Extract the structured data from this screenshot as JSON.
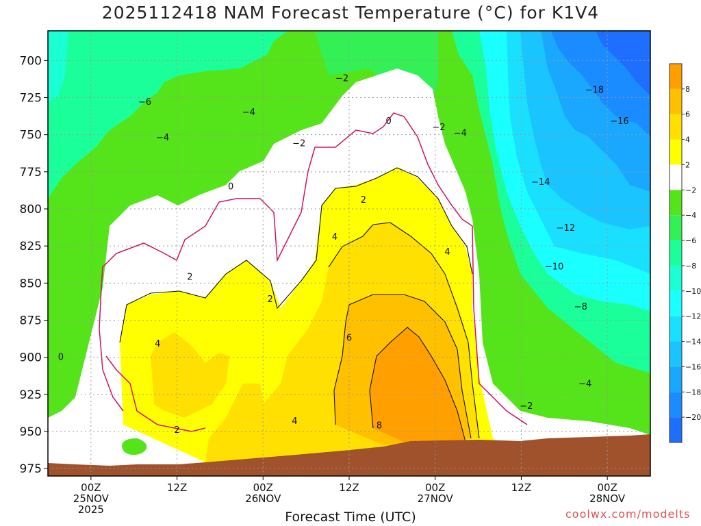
{
  "chart_data": {
    "type": "contour",
    "title": "2025112418 NAM Forecast Temperature (°C) for K1V4",
    "xlabel": "Forecast Time (UTC)",
    "ylabel": "",
    "y_scale": "pressure (hPa), decreasing upward",
    "y_range": [
      980,
      680
    ],
    "y_ticks": [
      700,
      725,
      750,
      775,
      800,
      825,
      850,
      875,
      900,
      925,
      950,
      975
    ],
    "x_range_hours": [
      0,
      84
    ],
    "x_ticks": [
      {
        "hour": 6,
        "lines": [
          "00Z",
          "25NOV",
          "2025"
        ]
      },
      {
        "hour": 18,
        "lines": [
          "12Z"
        ]
      },
      {
        "hour": 30,
        "lines": [
          "00Z",
          "26NOV"
        ]
      },
      {
        "hour": 42,
        "lines": [
          "12Z"
        ]
      },
      {
        "hour": 54,
        "lines": [
          "00Z",
          "27NOV"
        ]
      },
      {
        "hour": 66,
        "lines": [
          "12Z"
        ]
      },
      {
        "hour": 78,
        "lines": [
          "00Z",
          "28NOV"
        ]
      }
    ],
    "grid": true,
    "colorbar": {
      "placement": "right",
      "levels": [
        -22,
        -20,
        -18,
        -16,
        -14,
        -12,
        -10,
        -8,
        -6,
        -4,
        -2,
        2,
        4,
        6,
        8,
        10
      ],
      "labels": [
        "-20",
        "-18",
        "-16",
        "-14",
        "-12",
        "-10",
        "-8",
        "-6",
        "-4",
        "-2",
        "2",
        "4",
        "6",
        "8"
      ],
      "colors": [
        "#1e6eff",
        "#1a8cff",
        "#1aa8ff",
        "#1ac4ff",
        "#1ae0ff",
        "#1affff",
        "#1affd4",
        "#1aff9a",
        "#33f055",
        "#55e31a",
        "#ffffff",
        "#ffff00",
        "#ffe000",
        "#ffc000",
        "#ffa000"
      ]
    },
    "contour_labels": [
      {
        "hour": 13.5,
        "p": 728,
        "text": "-6"
      },
      {
        "hour": 16,
        "p": 752,
        "text": "-4"
      },
      {
        "hour": 28,
        "p": 735,
        "text": "-4"
      },
      {
        "hour": 41,
        "p": 712,
        "text": "-2"
      },
      {
        "hour": 35,
        "p": 756,
        "text": "-2"
      },
      {
        "hour": 54.5,
        "p": 745,
        "text": "-2"
      },
      {
        "hour": 57.5,
        "p": 749,
        "text": "-4"
      },
      {
        "hour": 47.5,
        "p": 741,
        "text": "0"
      },
      {
        "hour": 25.5,
        "p": 785,
        "text": "0"
      },
      {
        "hour": 1.8,
        "p": 900,
        "text": "0"
      },
      {
        "hour": 44,
        "p": 794,
        "text": "2"
      },
      {
        "hour": 19.8,
        "p": 846,
        "text": "2"
      },
      {
        "hour": 31,
        "p": 861,
        "text": "2"
      },
      {
        "hour": 18,
        "p": 949,
        "text": "2"
      },
      {
        "hour": 40,
        "p": 819,
        "text": "4"
      },
      {
        "hour": 55.7,
        "p": 829,
        "text": "4"
      },
      {
        "hour": 15.3,
        "p": 891,
        "text": "4"
      },
      {
        "hour": 34.4,
        "p": 943,
        "text": "4"
      },
      {
        "hour": 42,
        "p": 887,
        "text": "6"
      },
      {
        "hour": 46.2,
        "p": 946,
        "text": "8"
      },
      {
        "hour": 76.2,
        "p": 720,
        "text": "-18"
      },
      {
        "hour": 79.7,
        "p": 741,
        "text": "-16"
      },
      {
        "hour": 68.7,
        "p": 782,
        "text": "-14"
      },
      {
        "hour": 72.2,
        "p": 813,
        "text": "-12"
      },
      {
        "hour": 70.6,
        "p": 839,
        "text": "-10"
      },
      {
        "hour": 74.3,
        "p": 866,
        "text": "-8"
      },
      {
        "hour": 74.9,
        "p": 918,
        "text": "-4"
      },
      {
        "hour": 66.7,
        "p": 933,
        "text": "-2"
      }
    ]
  },
  "credit": "coolwx.com/modelts"
}
